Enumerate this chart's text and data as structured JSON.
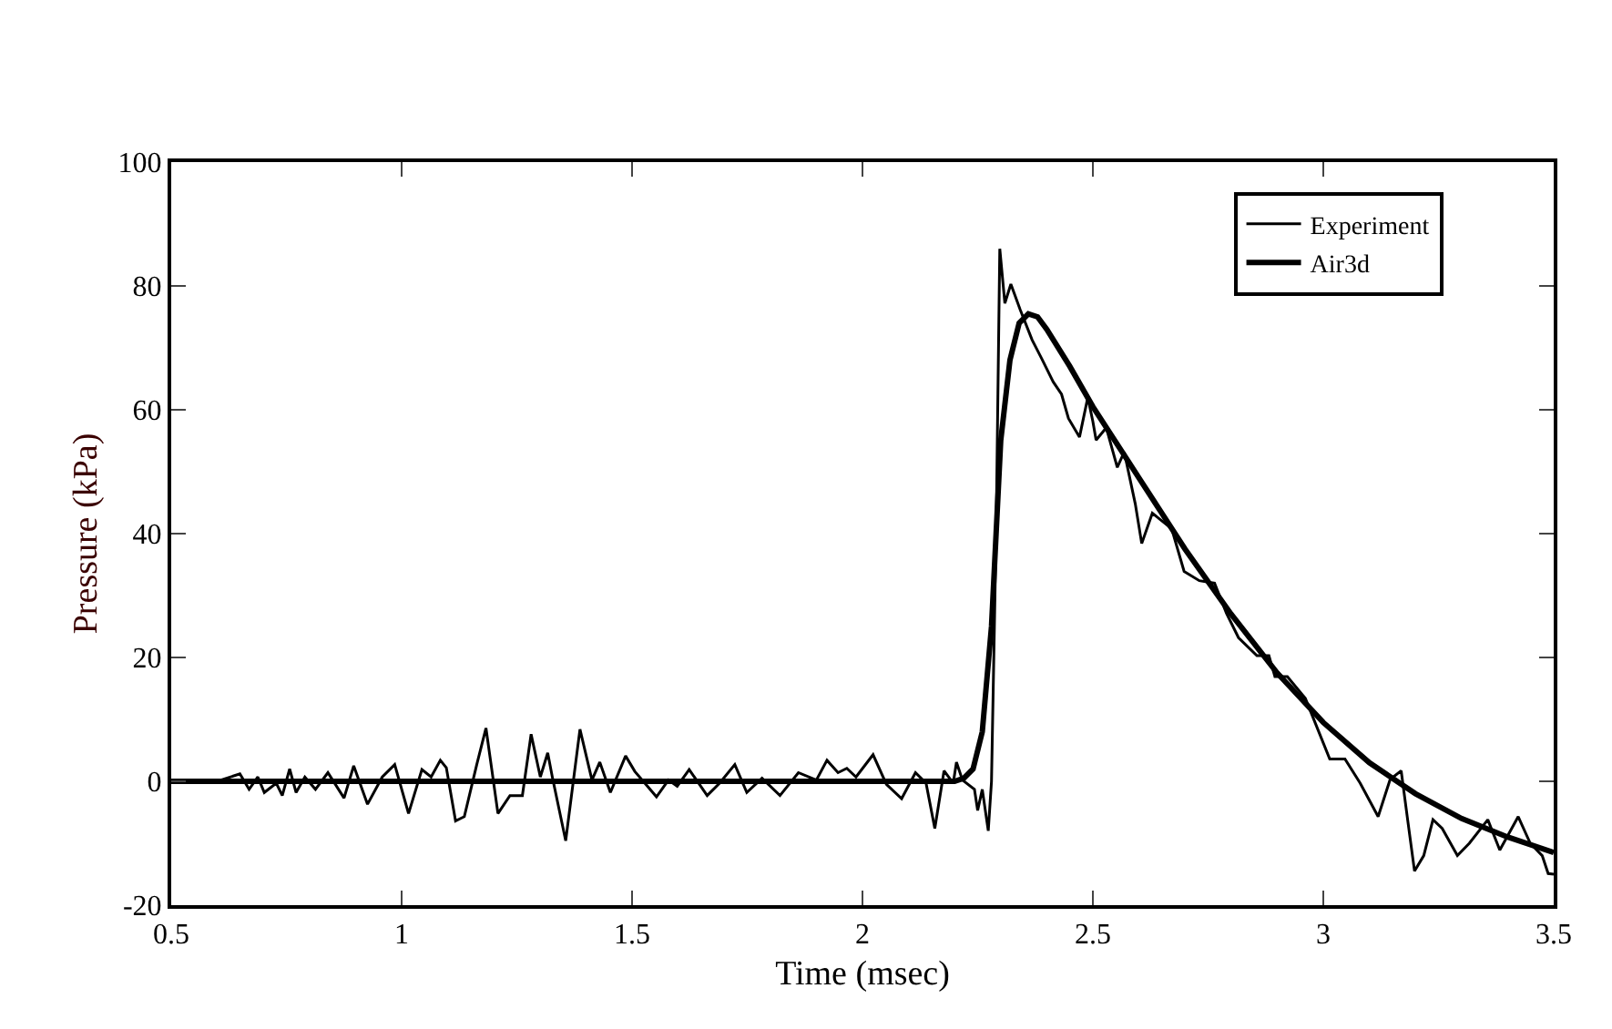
{
  "chart_data": {
    "type": "line",
    "xlabel": "Time (msec)",
    "ylabel": "Pressure (kPa)",
    "xlim": [
      0.5,
      3.5
    ],
    "ylim": [
      -20,
      100
    ],
    "xticks": [
      0.5,
      1,
      1.5,
      2,
      2.5,
      3,
      3.5
    ],
    "yticks": [
      -20,
      0,
      20,
      40,
      60,
      80,
      100
    ],
    "grid": false,
    "legend": "top right",
    "marker": "none",
    "series": [
      {
        "name": "Experiment",
        "color": "#000000",
        "x": [
          0.5,
          0.6,
          0.649,
          0.669,
          0.688,
          0.702,
          0.728,
          0.741,
          0.757,
          0.771,
          0.79,
          0.813,
          0.84,
          0.875,
          0.896,
          0.926,
          0.958,
          0.985,
          1.015,
          1.044,
          1.064,
          1.084,
          1.097,
          1.117,
          1.136,
          1.163,
          1.183,
          1.209,
          1.235,
          1.262,
          1.281,
          1.301,
          1.317,
          1.327,
          1.356,
          1.387,
          1.413,
          1.43,
          1.453,
          1.486,
          1.506,
          1.553,
          1.579,
          1.598,
          1.624,
          1.663,
          1.69,
          1.723,
          1.749,
          1.782,
          1.821,
          1.861,
          1.9,
          1.923,
          1.947,
          1.966,
          1.986,
          2.023,
          2.052,
          2.085,
          2.115,
          2.138,
          2.157,
          2.177,
          2.197,
          2.204,
          2.217,
          2.243,
          2.25,
          2.26,
          2.273,
          2.28,
          2.29,
          2.298,
          2.309,
          2.322,
          2.342,
          2.368,
          2.388,
          2.414,
          2.432,
          2.447,
          2.471,
          2.489,
          2.5,
          2.507,
          2.529,
          2.553,
          2.568,
          2.592,
          2.606,
          2.629,
          2.671,
          2.698,
          2.731,
          2.764,
          2.79,
          2.816,
          2.856,
          2.882,
          2.895,
          2.922,
          2.961,
          3.014,
          3.047,
          3.08,
          3.119,
          3.145,
          3.169,
          3.183,
          3.198,
          3.218,
          3.238,
          3.258,
          3.291,
          3.317,
          3.357,
          3.383,
          3.423,
          3.449,
          3.475,
          3.488,
          3.5
        ],
        "values": [
          0,
          0,
          1.2,
          -1.3,
          0.7,
          -1.8,
          -0.3,
          -2.3,
          2.0,
          -1.8,
          0.7,
          -1.3,
          1.4,
          -2.7,
          2.5,
          -3.7,
          0.7,
          2.7,
          -5.2,
          1.9,
          0.7,
          3.4,
          2.2,
          -6.4,
          -5.7,
          2.7,
          8.6,
          -5.2,
          -2.3,
          -2.3,
          7.6,
          0.7,
          4.6,
          0.7,
          -9.6,
          8.4,
          0.2,
          3.1,
          -1.8,
          4.1,
          1.6,
          -2.5,
          0.2,
          -0.8,
          1.9,
          -2.3,
          -0.3,
          2.7,
          -1.8,
          0.5,
          -2.3,
          1.4,
          0.2,
          3.4,
          1.4,
          2.1,
          0.7,
          4.3,
          -0.5,
          -2.8,
          1.4,
          -0.3,
          -7.6,
          1.7,
          -0.3,
          3.1,
          0.2,
          -1.3,
          -4.7,
          -1.3,
          -8.0,
          0,
          40,
          86,
          77.2,
          80.3,
          76.2,
          71.3,
          68.4,
          64.5,
          62.5,
          58.6,
          55.6,
          62,
          58.1,
          55.1,
          57.1,
          50.7,
          53.2,
          44.8,
          38.4,
          43.3,
          40.8,
          33.9,
          32.4,
          32,
          27.1,
          23.2,
          20.3,
          20.3,
          16.9,
          16.9,
          13.4,
          3.6,
          3.6,
          -0.3,
          -5.7,
          0.3,
          1.7,
          -6.2,
          -14.5,
          -12,
          -6.2,
          -7.6,
          -12,
          -10,
          -6.2,
          -11.1,
          -5.7,
          -10,
          -12,
          -14.9,
          -15
        ]
      },
      {
        "name": "Air3d",
        "color": "#000000",
        "x": [
          0.5,
          2.2,
          2.22,
          2.24,
          2.26,
          2.28,
          2.29,
          2.3,
          2.32,
          2.34,
          2.36,
          2.38,
          2.4,
          2.45,
          2.5,
          2.6,
          2.7,
          2.8,
          2.9,
          3.0,
          3.1,
          3.2,
          3.3,
          3.4,
          3.5
        ],
        "values": [
          0,
          0,
          0.5,
          2,
          8,
          25,
          40,
          55,
          68,
          74,
          75.5,
          75,
          73,
          67,
          60.5,
          49,
          37.5,
          27,
          17.5,
          9.5,
          3,
          -2,
          -6,
          -9,
          -11.5
        ]
      }
    ]
  }
}
